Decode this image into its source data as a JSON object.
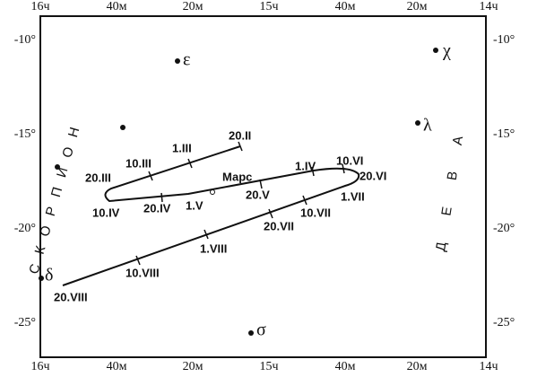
{
  "ra_top": [
    "16ч",
    "40м",
    "20м",
    "15ч",
    "40м",
    "20м",
    "14ч"
  ],
  "ra_bottom": [
    "16ч",
    "40м",
    "20м",
    "15ч",
    "40м",
    "20м",
    "14ч"
  ],
  "dec_left": [
    "-10°",
    "-15°",
    "-20°",
    "-25°"
  ],
  "dec_right": [
    "-10°",
    "-15°",
    "-20°",
    "-25°"
  ],
  "stars": [
    "ε",
    "χ",
    "λ",
    "σ",
    "δ"
  ],
  "constellations": [
    "СКОРПИОН",
    "ДЕВА"
  ],
  "planet": "Марс",
  "dates": [
    "20.II",
    "1.III",
    "10.III",
    "20.III",
    "10.IV",
    "20.IV",
    "1.V",
    "20.V",
    "1.IV",
    "10.VI",
    "20.VI",
    "1.VII",
    "10.VII",
    "20.VII",
    "1.VIII",
    "10.VIII",
    "20.VIII"
  ]
}
